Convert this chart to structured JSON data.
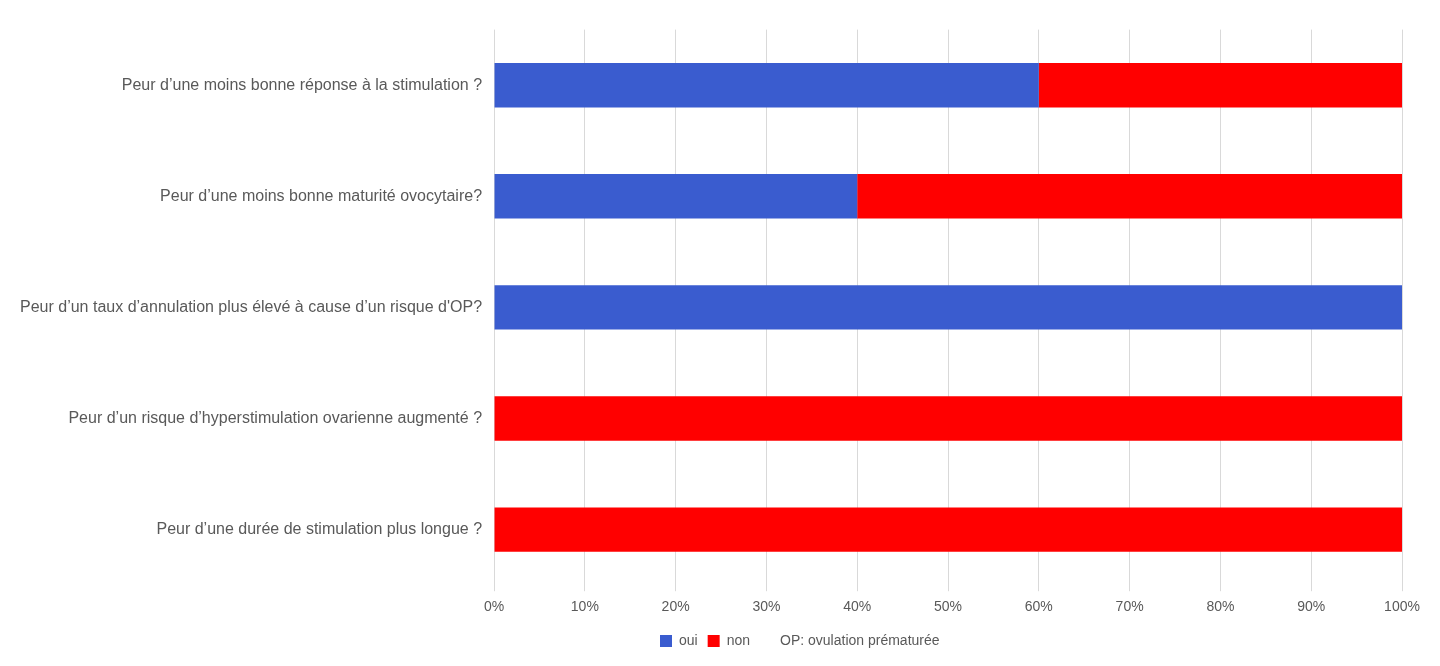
{
  "chart_data": {
    "type": "bar",
    "orientation": "horizontal",
    "stacked": true,
    "categories": [
      "Peur d’une moins bonne réponse à la stimulation ?",
      "Peur d’une moins bonne maturité ovocytaire?",
      "Peur d’un taux d’annulation plus élevé à cause d’un risque d'OP?",
      "Peur d’un risque d’hyperstimulation ovarienne augmenté ?",
      "Peur d’une durée de stimulation plus longue ?"
    ],
    "series": [
      {
        "name": "oui",
        "color": "#3a5ccf",
        "values": [
          60,
          40,
          100,
          0,
          0
        ]
      },
      {
        "name": "non",
        "color": "#ff0000",
        "values": [
          40,
          60,
          0,
          100,
          100
        ]
      }
    ],
    "xlim": [
      0,
      100
    ],
    "xticks": [
      {
        "value": 0,
        "label": "0%"
      },
      {
        "value": 10,
        "label": "10%"
      },
      {
        "value": 20,
        "label": "20%"
      },
      {
        "value": 30,
        "label": "30%"
      },
      {
        "value": 40,
        "label": "40%"
      },
      {
        "value": 50,
        "label": "50%"
      },
      {
        "value": 60,
        "label": "60%"
      },
      {
        "value": 70,
        "label": "70%"
      },
      {
        "value": 80,
        "label": "80%"
      },
      {
        "value": 90,
        "label": "90%"
      },
      {
        "value": 100,
        "label": "100%"
      }
    ],
    "grid": "x",
    "legend": "bottom",
    "annotations": [
      "OP: ovulation prématurée"
    ]
  }
}
